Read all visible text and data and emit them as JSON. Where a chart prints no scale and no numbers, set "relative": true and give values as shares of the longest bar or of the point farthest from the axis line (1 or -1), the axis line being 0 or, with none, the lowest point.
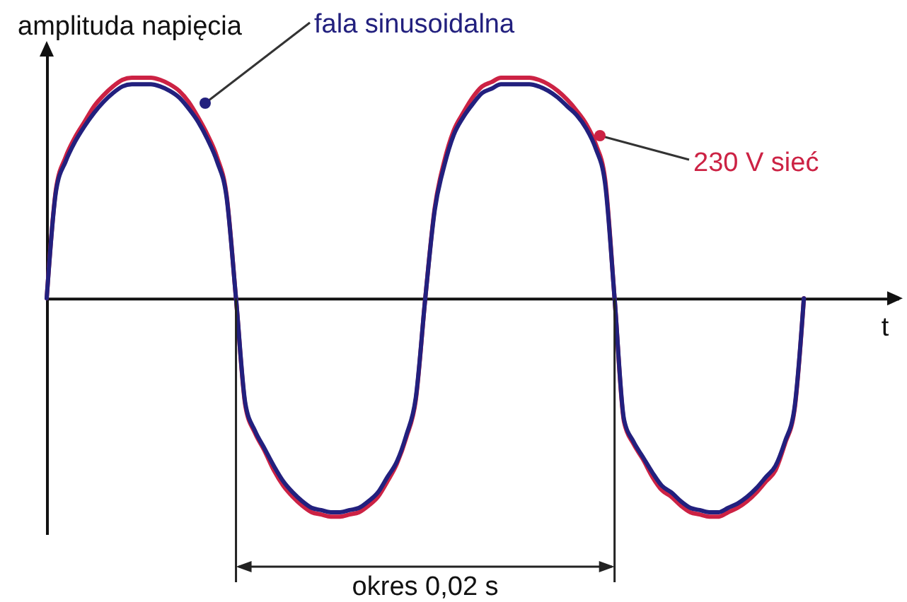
{
  "chart_data": {
    "type": "line",
    "relative": true,
    "ylabel": "amplituda napięcia",
    "xlabel": "t",
    "annotations": [
      "okres 0,02 s"
    ],
    "categories": [
      null,
      null,
      null,
      null,
      null,
      null,
      null,
      null,
      null,
      null,
      null,
      null,
      null,
      null,
      null,
      null,
      null,
      null,
      null,
      null,
      null,
      null,
      null,
      null,
      null,
      null,
      null,
      null,
      null,
      null,
      null,
      null,
      null,
      null,
      null,
      null,
      null,
      null,
      null,
      null,
      null,
      null,
      null,
      null,
      null,
      null,
      null,
      null,
      null,
      null,
      null,
      null,
      null,
      null,
      null,
      null,
      null,
      null,
      null,
      null,
      null,
      null,
      null,
      null,
      null,
      null,
      null,
      null,
      null,
      null,
      null,
      null,
      null,
      null,
      null,
      null,
      null,
      null,
      null,
      null,
      null,
      null,
      null,
      null,
      null,
      null,
      null,
      null,
      null,
      null,
      null
    ],
    "series": [
      {
        "name": "230 V sieć",
        "color": "#cc2244",
        "values": [
          0,
          0.5,
          0.64,
          0.73,
          0.8,
          0.87,
          0.92,
          0.96,
          0.99,
          1.0,
          1.0,
          1.0,
          0.99,
          0.97,
          0.94,
          0.89,
          0.82,
          0.74,
          0.64,
          0.47,
          0,
          -0.49,
          -0.61,
          -0.69,
          -0.78,
          -0.85,
          -0.9,
          -0.94,
          -0.97,
          -0.98,
          -0.99,
          -0.99,
          -0.98,
          -0.97,
          -0.94,
          -0.9,
          -0.83,
          -0.75,
          -0.63,
          -0.46,
          0,
          0.41,
          0.62,
          0.76,
          0.84,
          0.91,
          0.96,
          0.98,
          1.0,
          1.0,
          1.0,
          1.0,
          0.99,
          0.97,
          0.94,
          0.9,
          0.85,
          0.79,
          0.7,
          0.54,
          0,
          -0.56,
          -0.66,
          -0.73,
          -0.81,
          -0.87,
          -0.9,
          -0.94,
          -0.97,
          -0.98,
          -0.99,
          -0.99,
          -0.97,
          -0.95,
          -0.92,
          -0.88,
          -0.83,
          -0.78,
          -0.66,
          -0.51,
          0,
          null,
          null,
          null,
          null,
          null,
          null,
          null,
          null,
          null,
          null
        ]
      },
      {
        "name": "fala sinusoidalna",
        "color": "#22207e",
        "values": [
          0,
          0.49,
          0.62,
          0.71,
          0.78,
          0.84,
          0.89,
          0.93,
          0.96,
          0.97,
          0.97,
          0.97,
          0.96,
          0.94,
          0.91,
          0.86,
          0.8,
          0.72,
          0.62,
          0.46,
          0,
          -0.48,
          -0.6,
          -0.68,
          -0.76,
          -0.83,
          -0.88,
          -0.92,
          -0.95,
          -0.96,
          -0.97,
          -0.97,
          -0.96,
          -0.95,
          -0.92,
          -0.88,
          -0.81,
          -0.74,
          -0.62,
          -0.45,
          0,
          0.4,
          0.6,
          0.74,
          0.82,
          0.88,
          0.93,
          0.95,
          0.97,
          0.97,
          0.97,
          0.97,
          0.96,
          0.94,
          0.91,
          0.87,
          0.83,
          0.77,
          0.68,
          0.52,
          0,
          -0.55,
          -0.65,
          -0.72,
          -0.79,
          -0.85,
          -0.88,
          -0.92,
          -0.95,
          -0.96,
          -0.97,
          -0.97,
          -0.95,
          -0.93,
          -0.9,
          -0.86,
          -0.81,
          -0.76,
          -0.65,
          -0.5,
          0,
          null,
          null,
          null,
          null,
          null,
          null,
          null,
          null,
          null,
          null
        ]
      }
    ]
  }
}
